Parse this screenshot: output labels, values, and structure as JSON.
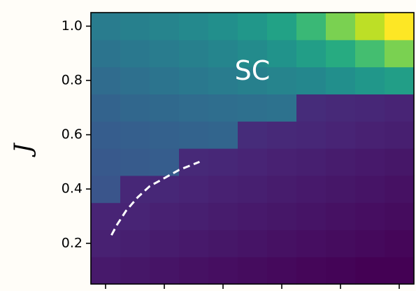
{
  "chart_data": {
    "type": "heatmap",
    "title": "",
    "xlabel": "",
    "ylabel": "J",
    "ylim": [
      0.05,
      1.05
    ],
    "xlim": [
      0,
      11
    ],
    "grid": false,
    "colormap": "viridis",
    "yticks": [
      {
        "value": 0.2,
        "label": "0.2"
      },
      {
        "value": 0.4,
        "label": "0.4"
      },
      {
        "value": 0.6,
        "label": "0.6"
      },
      {
        "value": 0.8,
        "label": "0.8"
      },
      {
        "value": 1.0,
        "label": "1.0"
      }
    ],
    "xticks": [
      0.5,
      2.5,
      4.5,
      6.5,
      8.5,
      10.5
    ],
    "rows_y": [
      0.1,
      0.2,
      0.3,
      0.4,
      0.5,
      0.6,
      0.7,
      0.8,
      0.9,
      1.0
    ],
    "values": [
      [
        0.09,
        0.08,
        0.07,
        0.06,
        0.05,
        0.04,
        0.03,
        0.02,
        0.01,
        0.0,
        0.0
      ],
      [
        0.12,
        0.11,
        0.1,
        0.09,
        0.08,
        0.07,
        0.06,
        0.05,
        0.04,
        0.03,
        0.02
      ],
      [
        0.13,
        0.13,
        0.12,
        0.11,
        0.1,
        0.09,
        0.08,
        0.07,
        0.06,
        0.05,
        0.04
      ],
      [
        0.33,
        0.14,
        0.14,
        0.13,
        0.12,
        0.11,
        0.1,
        0.09,
        0.08,
        0.07,
        0.06
      ],
      [
        0.35,
        0.36,
        0.37,
        0.15,
        0.14,
        0.13,
        0.12,
        0.11,
        0.1,
        0.09,
        0.08
      ],
      [
        0.37,
        0.38,
        0.39,
        0.4,
        0.41,
        0.16,
        0.15,
        0.14,
        0.13,
        0.12,
        0.11
      ],
      [
        0.4,
        0.42,
        0.43,
        0.44,
        0.45,
        0.46,
        0.47,
        0.16,
        0.15,
        0.14,
        0.13
      ],
      [
        0.44,
        0.46,
        0.48,
        0.5,
        0.52,
        0.54,
        0.56,
        0.58,
        0.62,
        0.66,
        0.7
      ],
      [
        0.48,
        0.5,
        0.52,
        0.54,
        0.57,
        0.6,
        0.64,
        0.7,
        0.76,
        0.82,
        0.88
      ],
      [
        0.52,
        0.54,
        0.56,
        0.59,
        0.62,
        0.66,
        0.72,
        0.8,
        0.88,
        0.94,
        1.0
      ]
    ],
    "annotations": [
      {
        "text": "SC",
        "x": 5.5,
        "y": 0.83
      }
    ],
    "boundary_line": {
      "style": "dashed",
      "color": "#ffffff",
      "points": [
        [
          0.7,
          0.23
        ],
        [
          0.9,
          0.27
        ],
        [
          1.2,
          0.32
        ],
        [
          1.6,
          0.37
        ],
        [
          2.0,
          0.41
        ],
        [
          2.5,
          0.44
        ],
        [
          3.0,
          0.47
        ],
        [
          3.7,
          0.5
        ]
      ]
    }
  }
}
